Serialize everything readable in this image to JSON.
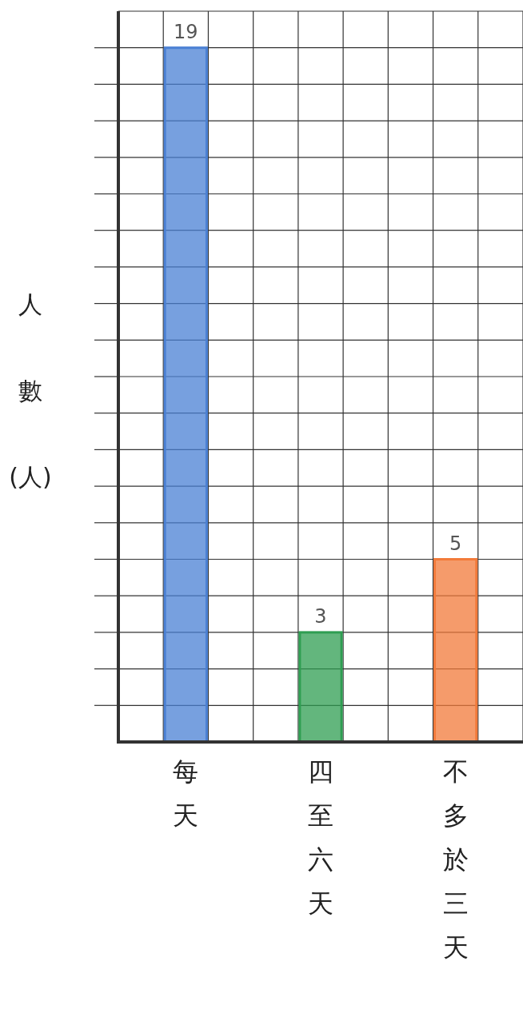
{
  "chart_data": {
    "type": "bar",
    "ylabel": "人數(人)",
    "categories": [
      "每天",
      "四至六天",
      "不多於三天"
    ],
    "values": [
      19,
      3,
      5
    ],
    "colors": [
      "#4a80d4",
      "#2f9e52",
      "#f27a3a"
    ],
    "data_labels": true,
    "ylim": [
      0,
      20
    ],
    "yticks": [
      {
        "value": 1,
        "label": null
      },
      {
        "value": 2,
        "label": null
      },
      {
        "value": 3,
        "label": null
      },
      {
        "value": 4,
        "label": null
      },
      {
        "value": 5,
        "label": null
      },
      {
        "value": 6,
        "label": null
      },
      {
        "value": 7,
        "label": null
      },
      {
        "value": 8,
        "label": null
      },
      {
        "value": 9,
        "label": null
      },
      {
        "value": 10,
        "label": null
      },
      {
        "value": 11,
        "label": null
      },
      {
        "value": 12,
        "label": null
      },
      {
        "value": 13,
        "label": null
      },
      {
        "value": 14,
        "label": null
      },
      {
        "value": 15,
        "label": null
      },
      {
        "value": 16,
        "label": null
      },
      {
        "value": 17,
        "label": null
      },
      {
        "value": 18,
        "label": null
      },
      {
        "value": 19,
        "label": null
      }
    ],
    "tick_labels": "x",
    "grid": true
  }
}
